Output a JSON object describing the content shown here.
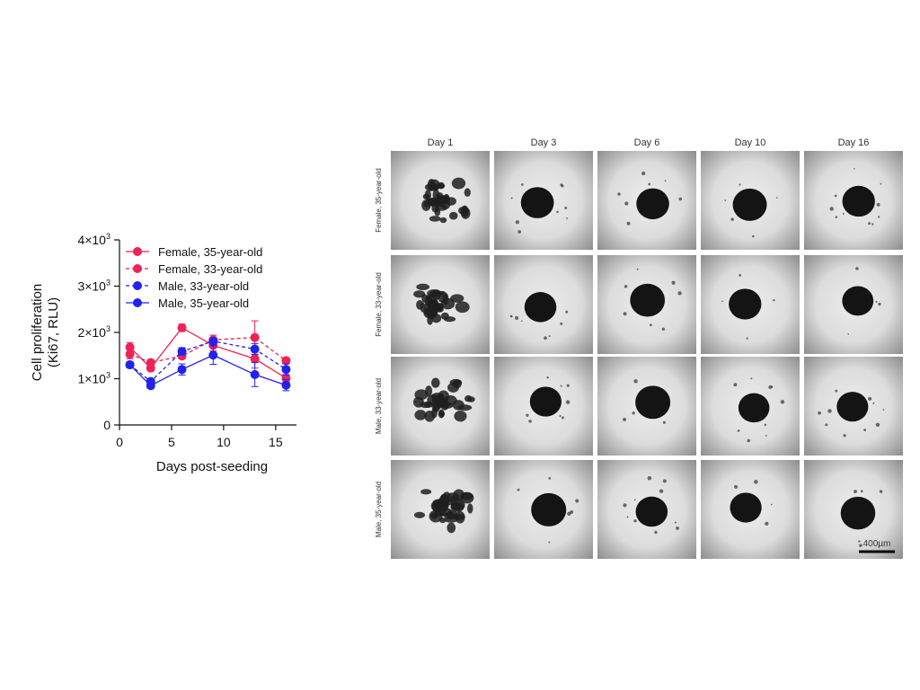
{
  "chart_data": {
    "type": "line",
    "ylabel_line1": "Cell proliferation",
    "ylabel_line2": "(Ki67, RLU)",
    "xlabel": "Days post-seeding",
    "xlim": [
      0,
      17
    ],
    "ylim": [
      0,
      4000
    ],
    "x_ticks": [
      "0",
      "5",
      "10",
      "15"
    ],
    "x_tick_values": [
      0,
      5,
      10,
      15
    ],
    "y_tick_values": [
      0,
      1000,
      2000,
      3000,
      4000
    ],
    "y_ticks": [
      {
        "mantissa": "0",
        "exp": ""
      },
      {
        "mantissa": "1×10",
        "exp": "3"
      },
      {
        "mantissa": "2×10",
        "exp": "3"
      },
      {
        "mantissa": "3×10",
        "exp": "3"
      },
      {
        "mantissa": "4×10",
        "exp": "3"
      }
    ],
    "legend_position": "top-left",
    "grid": false,
    "x": [
      1,
      3,
      6,
      9,
      13,
      16
    ],
    "series": [
      {
        "name": "Female, 35-year-old",
        "color": "#ee2255",
        "dash": "solid",
        "values": [
          1680,
          1230,
          2100,
          1720,
          1430,
          1010
        ],
        "errors": [
          100,
          60,
          80,
          120,
          200,
          80
        ]
      },
      {
        "name": "Female, 33-year-old",
        "color": "#ee2255",
        "dash": "dashed",
        "values": [
          1530,
          1350,
          1490,
          1840,
          1890,
          1390
        ],
        "errors": [
          100,
          60,
          60,
          100,
          360,
          60
        ]
      },
      {
        "name": "Male, 33-year-old",
        "color": "#2222ee",
        "dash": "dashed",
        "values": [
          1300,
          940,
          1590,
          1810,
          1640,
          1200
        ],
        "errors": [
          60,
          60,
          80,
          60,
          120,
          120
        ]
      },
      {
        "name": "Male, 35-year-old",
        "color": "#2222ee",
        "dash": "solid",
        "values": [
          1300,
          850,
          1200,
          1510,
          1090,
          860
        ],
        "errors": [
          60,
          60,
          120,
          200,
          260,
          120
        ]
      }
    ]
  },
  "image_grid": {
    "columns": [
      "Day 1",
      "Day 3",
      "Day 6",
      "Day 10",
      "Day 16"
    ],
    "rows": [
      "Female, 35-year-old",
      "Female, 33-year-old",
      "Male, 33-year-old",
      "Male, 35-year-old"
    ],
    "scale_bar_label": "400µm"
  }
}
